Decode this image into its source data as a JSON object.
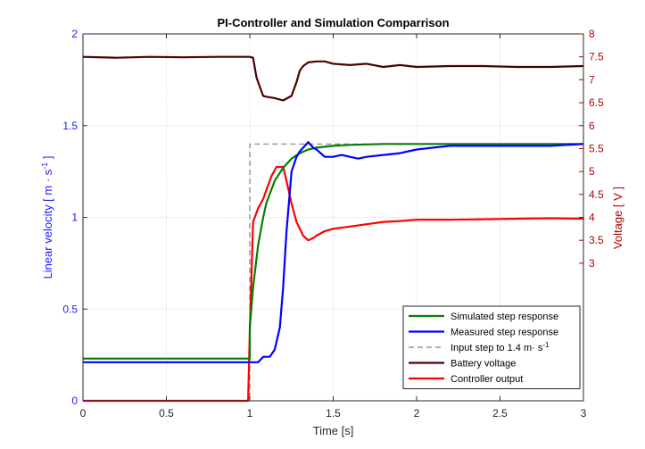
{
  "chart_data": {
    "type": "line",
    "title": "PI-Controller and Simulation Comparrison",
    "xlabel": "Time [s]",
    "ylabel_left": {
      "main": "Linear velocity [ m · s",
      "sup": "-1",
      "end": " ]"
    },
    "ylabel_right": "Voltage [ V ]",
    "xlim": [
      0,
      3
    ],
    "ylim_left": [
      0,
      2
    ],
    "ylim_right": [
      0,
      8
    ],
    "xticks": [
      "0",
      "0.5",
      "1",
      "1.5",
      "2",
      "2.5",
      "3"
    ],
    "yticks_left": [
      "0",
      "0.5",
      "1",
      "1.5",
      "2"
    ],
    "yticks_right": [
      "3",
      "3.5",
      "4",
      "4.5",
      "5",
      "5.5",
      "6",
      "6.5",
      "7",
      "7.5",
      "8"
    ],
    "grid": true,
    "legend_position": "bottom-right",
    "series": [
      {
        "name": "Simulated step response",
        "axis": "left",
        "color": "#008000",
        "dash": false,
        "x": [
          0,
          1.0,
          1.0,
          1.02,
          1.05,
          1.08,
          1.1,
          1.15,
          1.2,
          1.25,
          1.3,
          1.35,
          1.4,
          1.5,
          1.6,
          1.8,
          2.0,
          2.5,
          3.0
        ],
        "y": [
          0.23,
          0.23,
          0.4,
          0.62,
          0.85,
          1.0,
          1.08,
          1.2,
          1.27,
          1.32,
          1.35,
          1.37,
          1.38,
          1.39,
          1.395,
          1.4,
          1.4,
          1.4,
          1.4
        ]
      },
      {
        "name": "Measured step response",
        "axis": "left",
        "color": "#0000ff",
        "dash": false,
        "x": [
          0,
          1.0,
          1.05,
          1.08,
          1.12,
          1.15,
          1.18,
          1.2,
          1.22,
          1.25,
          1.28,
          1.3,
          1.35,
          1.38,
          1.4,
          1.45,
          1.5,
          1.55,
          1.6,
          1.65,
          1.7,
          1.8,
          1.9,
          2.0,
          2.1,
          2.2,
          2.4,
          2.6,
          2.8,
          3.0
        ],
        "y": [
          0.21,
          0.21,
          0.21,
          0.24,
          0.24,
          0.28,
          0.4,
          0.62,
          0.92,
          1.25,
          1.33,
          1.36,
          1.41,
          1.38,
          1.37,
          1.33,
          1.33,
          1.34,
          1.33,
          1.32,
          1.33,
          1.34,
          1.35,
          1.37,
          1.38,
          1.39,
          1.39,
          1.39,
          1.39,
          1.4
        ]
      },
      {
        "name": "Input step to 1.4 m· s",
        "name_sup": "-1",
        "axis": "left",
        "color": "#808080",
        "dash": true,
        "x": [
          0,
          1.0,
          1.0,
          3.0
        ],
        "y": [
          0,
          0,
          1.4,
          1.4
        ]
      },
      {
        "name": "Battery voltage",
        "axis": "right",
        "color": "#4d0000",
        "dash": false,
        "x": [
          0,
          0.2,
          0.4,
          0.6,
          0.8,
          0.95,
          1.0,
          1.02,
          1.04,
          1.06,
          1.08,
          1.1,
          1.15,
          1.2,
          1.25,
          1.28,
          1.3,
          1.32,
          1.35,
          1.4,
          1.45,
          1.5,
          1.6,
          1.7,
          1.8,
          1.9,
          2.0,
          2.2,
          2.4,
          2.6,
          2.8,
          3.0
        ],
        "y": [
          7.5,
          7.48,
          7.5,
          7.49,
          7.5,
          7.5,
          7.5,
          7.48,
          7.05,
          6.85,
          6.65,
          6.63,
          6.6,
          6.55,
          6.65,
          6.95,
          7.2,
          7.3,
          7.38,
          7.4,
          7.4,
          7.35,
          7.32,
          7.35,
          7.28,
          7.32,
          7.28,
          7.3,
          7.3,
          7.28,
          7.28,
          7.3
        ]
      },
      {
        "name": "Controller output",
        "axis": "right",
        "color": "#ff0000",
        "dash": false,
        "x": [
          0,
          0.99,
          1.0,
          1.02,
          1.05,
          1.08,
          1.1,
          1.13,
          1.16,
          1.2,
          1.22,
          1.25,
          1.28,
          1.32,
          1.35,
          1.38,
          1.4,
          1.45,
          1.5,
          1.6,
          1.7,
          1.8,
          1.9,
          2.0,
          2.2,
          2.4,
          2.6,
          2.8,
          3.0
        ],
        "y": [
          0,
          0,
          1.5,
          3.9,
          4.2,
          4.4,
          4.6,
          4.9,
          5.1,
          5.1,
          4.8,
          4.3,
          3.9,
          3.6,
          3.5,
          3.55,
          3.6,
          3.7,
          3.75,
          3.8,
          3.85,
          3.9,
          3.92,
          3.95,
          3.95,
          3.96,
          3.97,
          3.98,
          3.97
        ]
      }
    ]
  }
}
